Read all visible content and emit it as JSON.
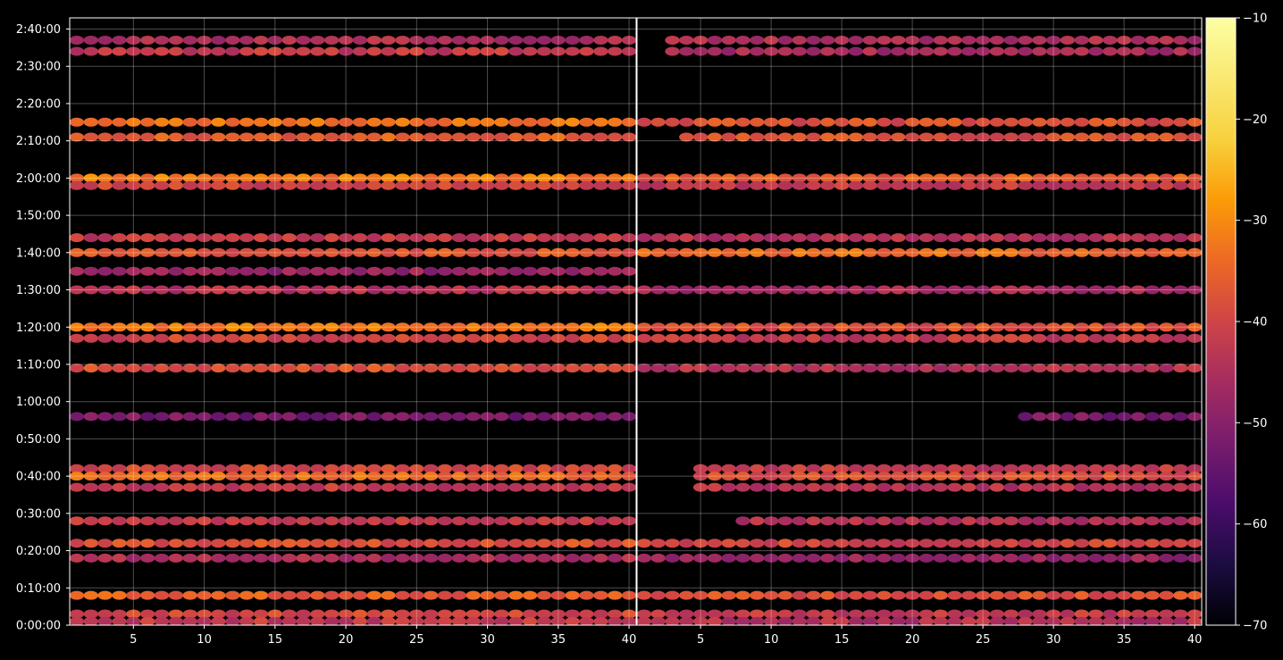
{
  "chart_data": {
    "type": "heatmap",
    "title": "",
    "xlabel": "",
    "ylabel": "",
    "background": "#000000",
    "grid": true,
    "colormap": "inferno",
    "panels": [
      {
        "name": "",
        "xlim": [
          1,
          40
        ],
        "xticks": [
          5,
          10,
          15,
          20,
          25,
          30,
          35,
          40
        ],
        "bands": [
          {
            "t": 95,
            "level": -48,
            "x_from": 1,
            "x_to": 40
          },
          {
            "t": 154,
            "level": -42,
            "x_from": 1,
            "x_to": 40
          },
          {
            "t": 157,
            "level": -45,
            "x_from": 1,
            "x_to": 40
          },
          {
            "t": 135,
            "level": -33,
            "x_from": 1,
            "x_to": 40
          },
          {
            "t": 131,
            "level": -36,
            "x_from": 1,
            "x_to": 40
          },
          {
            "t": 120,
            "level": -32,
            "x_from": 1,
            "x_to": 40
          },
          {
            "t": 118,
            "level": -40,
            "x_from": 1,
            "x_to": 40
          },
          {
            "t": 100,
            "level": -37,
            "x_from": 1,
            "x_to": 40
          },
          {
            "t": 104,
            "level": -42,
            "x_from": 1,
            "x_to": 40
          },
          {
            "t": 90,
            "level": -44,
            "x_from": 1,
            "x_to": 40
          },
          {
            "t": 80,
            "level": -32,
            "x_from": 1,
            "x_to": 40
          },
          {
            "t": 77,
            "level": -40,
            "x_from": 1,
            "x_to": 40
          },
          {
            "t": 69,
            "level": -38,
            "x_from": 1,
            "x_to": 40
          },
          {
            "t": 56,
            "level": -52,
            "x_from": 1,
            "x_to": 40
          },
          {
            "t": 42,
            "level": -40,
            "x_from": 1,
            "x_to": 40
          },
          {
            "t": 40,
            "level": -34,
            "x_from": 1,
            "x_to": 40
          },
          {
            "t": 37,
            "level": -42,
            "x_from": 1,
            "x_to": 40
          },
          {
            "t": 28,
            "level": -42,
            "x_from": 1,
            "x_to": 40
          },
          {
            "t": 22,
            "level": -38,
            "x_from": 1,
            "x_to": 40
          },
          {
            "t": 18,
            "level": -45,
            "x_from": 1,
            "x_to": 40
          },
          {
            "t": 8,
            "level": -36,
            "x_from": 1,
            "x_to": 40
          },
          {
            "t": 3,
            "level": -40,
            "x_from": 1,
            "x_to": 40
          },
          {
            "t": 1,
            "level": -42,
            "x_from": 1,
            "x_to": 40
          }
        ]
      },
      {
        "name": "",
        "xlim": [
          1,
          40
        ],
        "xticks": [
          5,
          10,
          15,
          20,
          25,
          30,
          35,
          40
        ],
        "bands": [
          {
            "t": 157,
            "level": -45,
            "x_from": 3,
            "x_to": 40
          },
          {
            "t": 154,
            "level": -46,
            "x_from": 3,
            "x_to": 40
          },
          {
            "t": 135,
            "level": -38,
            "x_from": 1,
            "x_to": 40
          },
          {
            "t": 131,
            "level": -38,
            "x_from": 4,
            "x_to": 40
          },
          {
            "t": 120,
            "level": -36,
            "x_from": 1,
            "x_to": 40
          },
          {
            "t": 118,
            "level": -42,
            "x_from": 1,
            "x_to": 40
          },
          {
            "t": 100,
            "level": -34,
            "x_from": 1,
            "x_to": 40
          },
          {
            "t": 104,
            "level": -44,
            "x_from": 1,
            "x_to": 40
          },
          {
            "t": 90,
            "level": -46,
            "x_from": 1,
            "x_to": 40
          },
          {
            "t": 80,
            "level": -38,
            "x_from": 1,
            "x_to": 40
          },
          {
            "t": 77,
            "level": -42,
            "x_from": 1,
            "x_to": 40
          },
          {
            "t": 69,
            "level": -44,
            "x_from": 1,
            "x_to": 40
          },
          {
            "t": 56,
            "level": -52,
            "x_from": 28,
            "x_to": 40
          },
          {
            "t": 42,
            "level": -42,
            "x_from": 5,
            "x_to": 40
          },
          {
            "t": 40,
            "level": -38,
            "x_from": 5,
            "x_to": 40
          },
          {
            "t": 37,
            "level": -44,
            "x_from": 5,
            "x_to": 40
          },
          {
            "t": 28,
            "level": -44,
            "x_from": 8,
            "x_to": 40
          },
          {
            "t": 22,
            "level": -40,
            "x_from": 1,
            "x_to": 40
          },
          {
            "t": 18,
            "level": -48,
            "x_from": 1,
            "x_to": 40
          },
          {
            "t": 8,
            "level": -38,
            "x_from": 1,
            "x_to": 40
          },
          {
            "t": 3,
            "level": -42,
            "x_from": 1,
            "x_to": 40
          },
          {
            "t": 1,
            "level": -44,
            "x_from": 1,
            "x_to": 40
          }
        ]
      }
    ],
    "y_axis": {
      "unit": "minutes",
      "range": [
        0,
        163
      ],
      "ticks": [
        0,
        10,
        20,
        30,
        40,
        50,
        60,
        70,
        80,
        90,
        100,
        110,
        120,
        130,
        140,
        150,
        160
      ],
      "tick_labels": [
        "0:00:00",
        "0:10:00",
        "0:20:00",
        "0:30:00",
        "0:40:00",
        "0:50:00",
        "1:00:00",
        "1:10:00",
        "1:20:00",
        "1:30:00",
        "1:40:00",
        "1:50:00",
        "2:00:00",
        "2:10:00",
        "2:20:00",
        "2:30:00",
        "2:40:00"
      ]
    },
    "colorbar": {
      "range": [
        -70,
        -10
      ],
      "ticks": [
        -10,
        -20,
        -30,
        -40,
        -50,
        -60,
        -70
      ],
      "tick_labels": [
        "−10",
        "−20",
        "−30",
        "−40",
        "−50",
        "−60",
        "−70"
      ]
    }
  }
}
